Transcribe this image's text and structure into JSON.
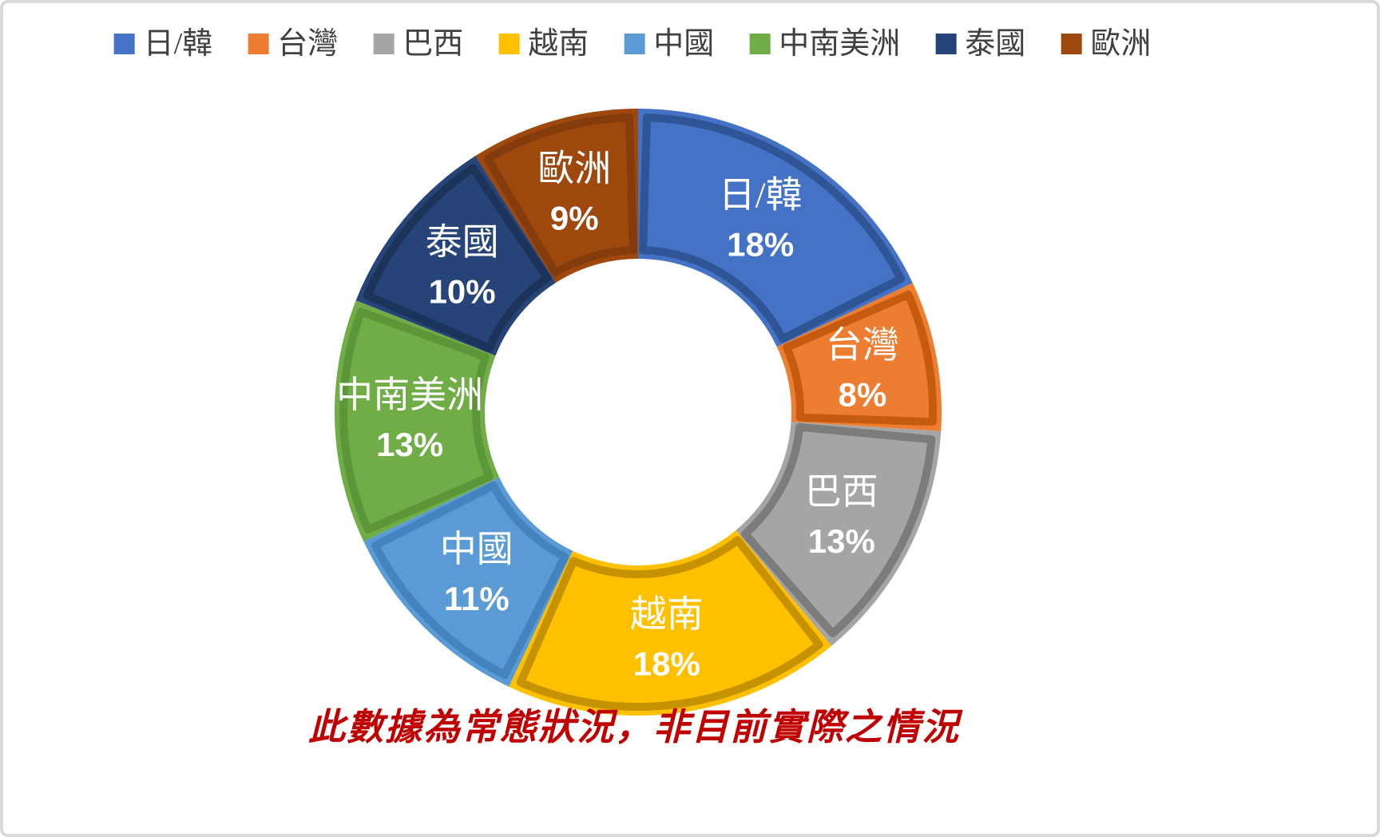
{
  "chart_data": {
    "type": "pie",
    "subtype": "donut",
    "title": "",
    "legend_position": "top",
    "direction": "clockwise",
    "start_angle_deg": 0,
    "hole_ratio": 0.5,
    "unit": "%",
    "categories": [
      "日/韓",
      "台灣",
      "巴西",
      "越南",
      "中國",
      "中南美洲",
      "泰國",
      "歐洲"
    ],
    "values": [
      18,
      8,
      13,
      18,
      11,
      13,
      10,
      9
    ],
    "series": [
      {
        "label": "日/韓",
        "value": 18,
        "data_label": "18%",
        "color": "#4472C4",
        "edge_color": "#2F5597"
      },
      {
        "label": "台灣",
        "value": 8,
        "data_label": "8%",
        "color": "#ED7D31",
        "edge_color": "#C55A11"
      },
      {
        "label": "巴西",
        "value": 13,
        "data_label": "13%",
        "color": "#A5A5A5",
        "edge_color": "#7C7C7C"
      },
      {
        "label": "越南",
        "value": 18,
        "data_label": "18%",
        "color": "#FFC000",
        "edge_color": "#C69200"
      },
      {
        "label": "中國",
        "value": 11,
        "data_label": "11%",
        "color": "#5B9BD5",
        "edge_color": "#4384BF"
      },
      {
        "label": "中南美洲",
        "value": 13,
        "data_label": "13%",
        "color": "#70AD47",
        "edge_color": "#5C9638"
      },
      {
        "label": "泰國",
        "value": 10,
        "data_label": "10%",
        "color": "#264478",
        "edge_color": "#1C335A"
      },
      {
        "label": "歐洲",
        "value": 9,
        "data_label": "9%",
        "color": "#9E480E",
        "edge_color": "#843C0C"
      }
    ],
    "data_label_text_color": "#FFFFFF"
  },
  "caption": {
    "text": "此數據為常態狀況，非目前實際之情況",
    "color": "#C00000"
  },
  "canvas": {
    "background": "#FFFFFF",
    "border_color": "#D9D9D9",
    "legend_text_color": "#404040"
  }
}
